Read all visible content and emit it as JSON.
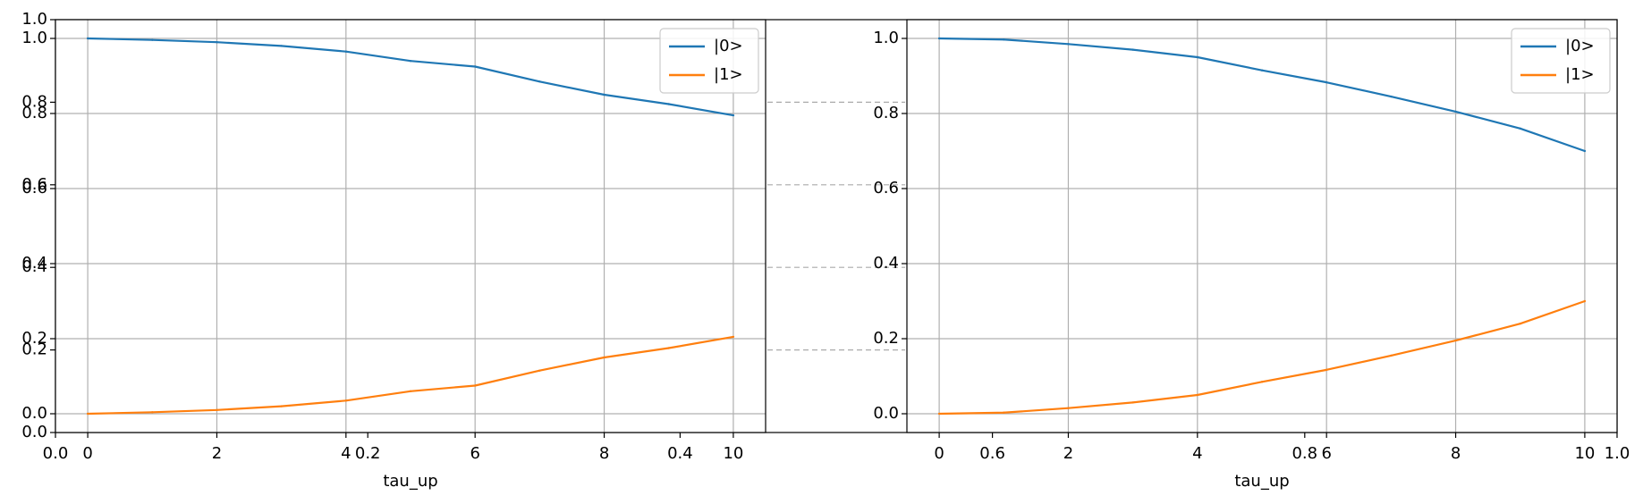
{
  "chart_data": [
    {
      "type": "line",
      "xlabel": "tau_up",
      "ylabel": "",
      "title": "",
      "xlim": [
        -0.5,
        10.5
      ],
      "ylim": [
        -0.05,
        1.05
      ],
      "x_ticks": [
        "0",
        "2",
        "4",
        "6",
        "8",
        "10"
      ],
      "y_ticks": [
        "0.0",
        "0.2",
        "0.4",
        "0.6",
        "0.8",
        "1.0"
      ],
      "grid": true,
      "legend_placement": "top-right",
      "x": [
        0,
        1,
        2,
        3,
        4,
        5,
        6,
        7,
        8,
        9,
        10
      ],
      "series": [
        {
          "name": "|0>",
          "color": "#1f77b4",
          "values": [
            1.0,
            0.996,
            0.99,
            0.98,
            0.965,
            0.94,
            0.925,
            0.885,
            0.85,
            0.825,
            0.795
          ]
        },
        {
          "name": "|1>",
          "color": "#ff7f0e",
          "values": [
            0.0,
            0.004,
            0.01,
            0.02,
            0.035,
            0.06,
            0.075,
            0.115,
            0.15,
            0.175,
            0.205
          ]
        }
      ]
    },
    {
      "type": "line",
      "xlabel": "tau_up",
      "ylabel": "",
      "title": "",
      "xlim": [
        -0.5,
        10.5
      ],
      "ylim": [
        -0.05,
        1.05
      ],
      "x_ticks": [
        "0",
        "2",
        "4",
        "6",
        "8",
        "10"
      ],
      "y_ticks": [
        "0.0",
        "0.2",
        "0.4",
        "0.6",
        "0.8",
        "1.0"
      ],
      "grid": true,
      "legend_placement": "top-right",
      "x": [
        0,
        1,
        2,
        3,
        4,
        5,
        6,
        7,
        8,
        9,
        10
      ],
      "series": [
        {
          "name": "|0>",
          "color": "#1f77b4",
          "values": [
            1.0,
            0.997,
            0.985,
            0.97,
            0.95,
            0.915,
            0.883,
            0.845,
            0.805,
            0.76,
            0.7
          ]
        },
        {
          "name": "|1>",
          "color": "#ff7f0e",
          "values": [
            0.0,
            0.003,
            0.015,
            0.03,
            0.05,
            0.085,
            0.117,
            0.155,
            0.195,
            0.24,
            0.3
          ]
        }
      ]
    }
  ],
  "frame_axes": {
    "x_ticks": [
      "0.0",
      "0.2",
      "0.4",
      "0.6",
      "0.8",
      "1.0"
    ],
    "y_ticks": [
      "0.0",
      "0.2",
      "0.4",
      "0.6",
      "0.8",
      "1.0"
    ],
    "xlim": [
      0,
      1
    ],
    "ylim": [
      0,
      1
    ]
  }
}
